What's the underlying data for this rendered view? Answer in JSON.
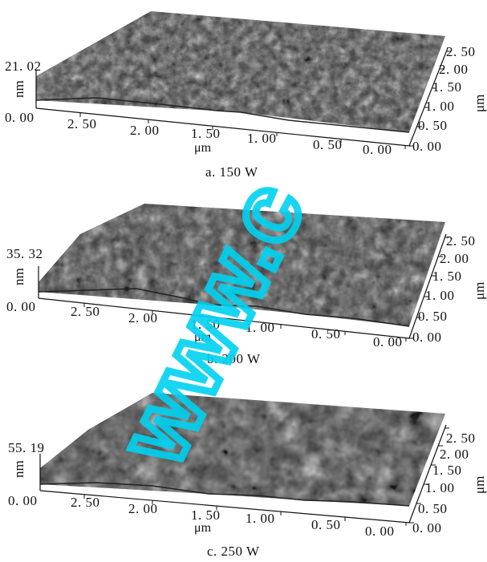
{
  "panels": [
    {
      "id": "a",
      "z_max_label": "21. 02",
      "z_min_label": "0. 00",
      "z_unit": "nm",
      "x_ticks": [
        "2. 50",
        "2. 00",
        "1. 50",
        "1. 00",
        "0. 50",
        "0. 00"
      ],
      "x_unit": "μm",
      "y_ticks": [
        "0. 00",
        "0. 50",
        "1. 00",
        "1. 50",
        "2. 00",
        "2. 50"
      ],
      "y_unit": "μm",
      "caption": "a. 150  W"
    },
    {
      "id": "b",
      "z_max_label": "35. 32",
      "z_min_label": "0. 00",
      "z_unit": "nm",
      "x_ticks": [
        "2. 50",
        "2. 00",
        "1. 50",
        "1. 00",
        "0. 50",
        "0. 00"
      ],
      "x_unit": "μm",
      "y_ticks": [
        "0. 00",
        "0. 50",
        "1. 00",
        "1. 50",
        "2. 00",
        "2. 50"
      ],
      "y_unit": "μm",
      "caption": "b. 200  W"
    },
    {
      "id": "c",
      "z_max_label": "55. 19",
      "z_min_label": "0. 00",
      "z_unit": "nm",
      "x_ticks": [
        "2. 50",
        "2. 00",
        "1. 50",
        "1. 00",
        "0. 50",
        "0. 00"
      ],
      "x_unit": "μm",
      "y_ticks": [
        "0. 00",
        "0. 50",
        "1. 00",
        "1. 50",
        "2. 00",
        "2. 50"
      ],
      "y_unit": "μm",
      "caption": "c. 250  W"
    }
  ],
  "watermark": {
    "text": "www.c",
    "color": "#00d2f0"
  }
}
